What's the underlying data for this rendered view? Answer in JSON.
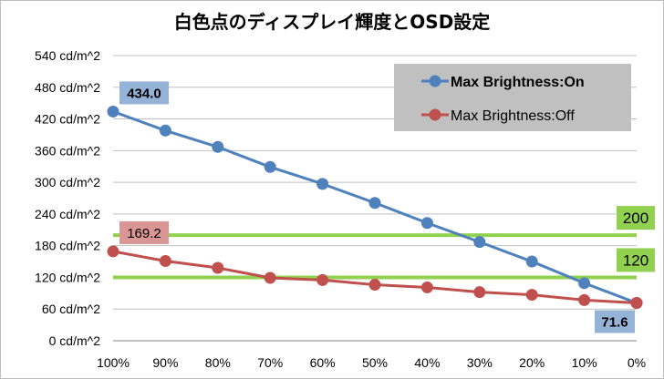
{
  "chart_data": {
    "type": "line",
    "title": "白色点のディスプレイ輝度とOSD設定",
    "categories": [
      "100%",
      "90%",
      "80%",
      "70%",
      "60%",
      "50%",
      "40%",
      "30%",
      "20%",
      "10%",
      "0%"
    ],
    "y_ticks": [
      "0 cd/m^2",
      "60 cd/m^2",
      "120 cd/m^2",
      "180 cd/m^2",
      "240 cd/m^2",
      "300 cd/m^2",
      "360 cd/m^2",
      "420 cd/m^2",
      "480 cd/m^2",
      "540 cd/m^2"
    ],
    "ylim": [
      0,
      540
    ],
    "grid": "horizontal",
    "legend_position": "top-right",
    "series": [
      {
        "name": "Max Brightness:On",
        "color": "#4f81bd",
        "values": [
          434.0,
          398,
          367,
          329,
          297,
          261,
          223,
          187,
          150,
          109,
          71.6
        ]
      },
      {
        "name": "Max Brightness:Off",
        "color": "#c0504d",
        "values": [
          169.2,
          151,
          138,
          119,
          115,
          106,
          101,
          92,
          87,
          77,
          71.6
        ]
      }
    ],
    "reference_lines": [
      {
        "label": "200",
        "value": 200,
        "color": "#92d050"
      },
      {
        "label": "120",
        "value": 120,
        "color": "#92d050"
      }
    ],
    "data_labels": [
      {
        "text": "434.0",
        "series": 0,
        "index": 0,
        "fill": "#95b3d7"
      },
      {
        "text": "71.6",
        "series": 0,
        "index": 10,
        "fill": "#95b3d7"
      },
      {
        "text": "169.2",
        "series": 1,
        "index": 0,
        "fill": "#d99694"
      }
    ]
  }
}
